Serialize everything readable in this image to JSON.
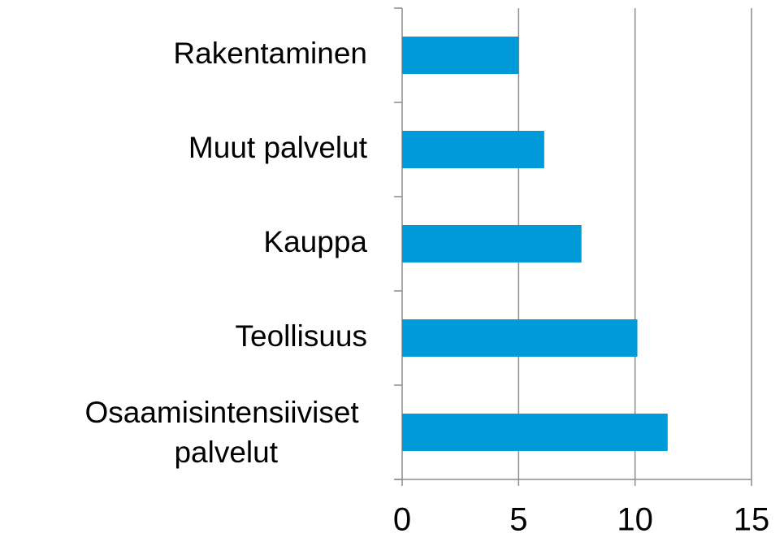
{
  "chart_data": {
    "type": "bar",
    "orientation": "horizontal",
    "categories": [
      "Rakentaminen",
      "Muut palvelut",
      "Kauppa",
      "Teollisuus",
      "Osaamisintensiiviset palvelut"
    ],
    "values": [
      5.0,
      6.1,
      7.7,
      10.1,
      11.4
    ],
    "color": "#009ad8",
    "xlim": [
      0,
      15
    ],
    "xticks": [
      0,
      5,
      10,
      15
    ],
    "grid": true
  }
}
